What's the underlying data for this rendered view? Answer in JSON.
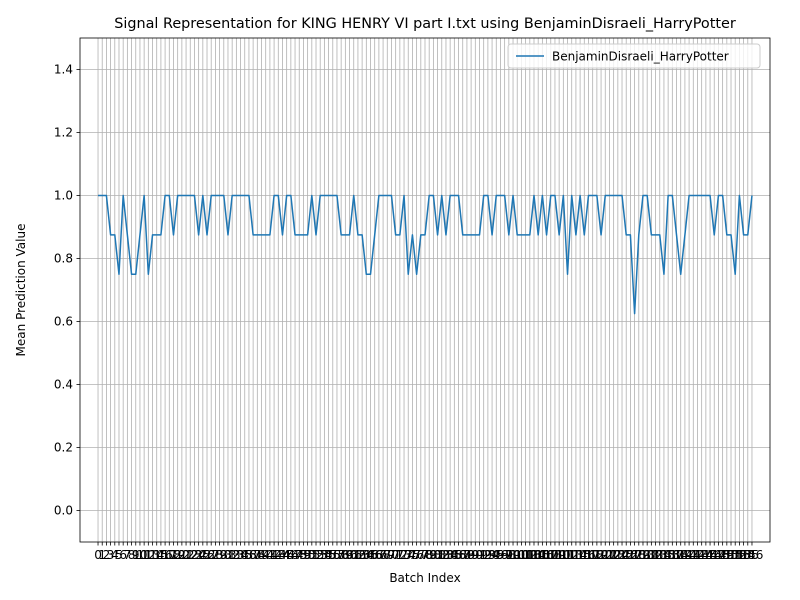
{
  "chart_data": {
    "type": "line",
    "title": "Signal Representation for KING HENRY VI part I.txt using BenjaminDisraeli_HarryPotter",
    "xlabel": "Batch Index",
    "ylabel": "Mean Prediction Value",
    "x": [
      0,
      1,
      2,
      3,
      4,
      5,
      6,
      7,
      8,
      9,
      10,
      11,
      12,
      13,
      14,
      15,
      16,
      17,
      18,
      19,
      20,
      21,
      22,
      23,
      24,
      25,
      26,
      27,
      28,
      29,
      30,
      31,
      32,
      33,
      34,
      35,
      36,
      37,
      38,
      39,
      40,
      41,
      42,
      43,
      44,
      45,
      46,
      47,
      48,
      49,
      50,
      51,
      52,
      53,
      54,
      55,
      56,
      57,
      58,
      59,
      60,
      61,
      62,
      63,
      64,
      65,
      66,
      67,
      68,
      69,
      70,
      71,
      72,
      73,
      74,
      75,
      76,
      77,
      78,
      79,
      80,
      81,
      82,
      83,
      84,
      85,
      86,
      87,
      88,
      89,
      90,
      91,
      92,
      93,
      94,
      95,
      96,
      97,
      98,
      99,
      100,
      101,
      102,
      103,
      104,
      105,
      106,
      107,
      108,
      109,
      110,
      111,
      112,
      113,
      114,
      115,
      116,
      117,
      118,
      119,
      120,
      121,
      122,
      123,
      124,
      125,
      126,
      127,
      128,
      129,
      130,
      131,
      132,
      133,
      134,
      135,
      136,
      137,
      138,
      139,
      140,
      141,
      142,
      143,
      144,
      145,
      146,
      147,
      148,
      149,
      150,
      151,
      152,
      153,
      154,
      155,
      156
    ],
    "series": [
      {
        "name": "BenjaminDisraeli_HarryPotter",
        "color": "#1f77b4",
        "values": [
          1,
          1,
          1,
          0.875,
          0.875,
          0.75,
          1,
          0.875,
          0.75,
          0.75,
          0.875,
          1,
          0.75,
          0.875,
          0.875,
          0.875,
          1,
          1,
          0.875,
          1,
          1,
          1,
          1,
          1,
          0.875,
          1,
          0.875,
          1,
          1,
          1,
          1,
          0.875,
          1,
          1,
          1,
          1,
          1,
          0.875,
          0.875,
          0.875,
          0.875,
          0.875,
          1,
          1,
          0.875,
          1,
          1,
          0.875,
          0.875,
          0.875,
          0.875,
          1,
          0.875,
          1,
          1,
          1,
          1,
          1,
          0.875,
          0.875,
          0.875,
          1,
          0.875,
          0.875,
          0.75,
          0.75,
          0.875,
          1,
          1,
          1,
          1,
          0.875,
          0.875,
          1,
          0.75,
          0.875,
          0.75,
          0.875,
          0.875,
          1,
          1,
          0.875,
          1,
          0.875,
          1,
          1,
          1,
          0.875,
          0.875,
          0.875,
          0.875,
          0.875,
          1,
          1,
          0.875,
          1,
          1,
          1,
          0.875,
          1,
          0.875,
          0.875,
          0.875,
          0.875,
          1,
          0.875,
          1,
          0.875,
          1,
          1,
          0.875,
          1,
          0.75,
          1,
          0.875,
          1,
          0.875,
          1,
          1,
          1,
          0.875,
          1,
          1,
          1,
          1,
          1,
          0.875,
          0.875,
          0.625,
          0.875,
          1,
          1,
          0.875,
          0.875,
          0.875,
          0.75,
          1,
          1,
          0.875,
          0.75,
          0.875,
          1,
          1,
          1,
          1,
          1,
          1,
          0.875,
          1,
          1,
          0.875,
          0.875,
          0.75,
          1,
          0.875,
          0.875,
          1
        ]
      }
    ],
    "xlim": [
      -4.3,
      160.3
    ],
    "xticks": [
      0,
      1,
      2,
      3,
      4,
      5,
      6,
      7,
      8,
      9,
      10,
      11,
      12,
      13,
      14,
      15,
      16,
      17,
      18,
      19,
      20,
      21,
      22,
      23,
      24,
      25,
      26,
      27,
      28,
      29,
      30,
      31,
      32,
      33,
      34,
      35,
      36,
      37,
      38,
      39,
      40,
      41,
      42,
      43,
      44,
      45,
      46,
      47,
      48,
      49,
      50,
      51,
      52,
      53,
      54,
      55,
      56,
      57,
      58,
      59,
      60,
      61,
      62,
      63,
      64,
      65,
      66,
      67,
      68,
      69,
      70,
      71,
      72,
      73,
      74,
      75,
      76,
      77,
      78,
      79,
      80,
      81,
      82,
      83,
      84,
      85,
      86,
      87,
      88,
      89,
      90,
      91,
      92,
      93,
      94,
      95,
      96,
      97,
      98,
      99,
      100,
      101,
      102,
      103,
      104,
      105,
      106,
      107,
      108,
      109,
      110,
      111,
      112,
      113,
      114,
      115,
      116,
      117,
      118,
      119,
      120,
      121,
      122,
      123,
      124,
      125,
      126,
      127,
      128,
      129,
      130,
      131,
      132,
      133,
      134,
      135,
      136,
      137,
      138,
      139,
      140,
      141,
      142,
      143,
      144,
      145,
      146,
      147,
      148,
      149,
      150,
      151,
      152,
      153,
      154,
      155,
      156
    ],
    "ylim": [
      -0.1,
      1.5
    ],
    "yticks": [
      {
        "value": 0,
        "label": "0.0"
      },
      0.2,
      0.4,
      0.6,
      0.8,
      {
        "value": 1,
        "label": "1.0"
      },
      1.2,
      1.4
    ],
    "grid": true,
    "legend": "upper right"
  }
}
